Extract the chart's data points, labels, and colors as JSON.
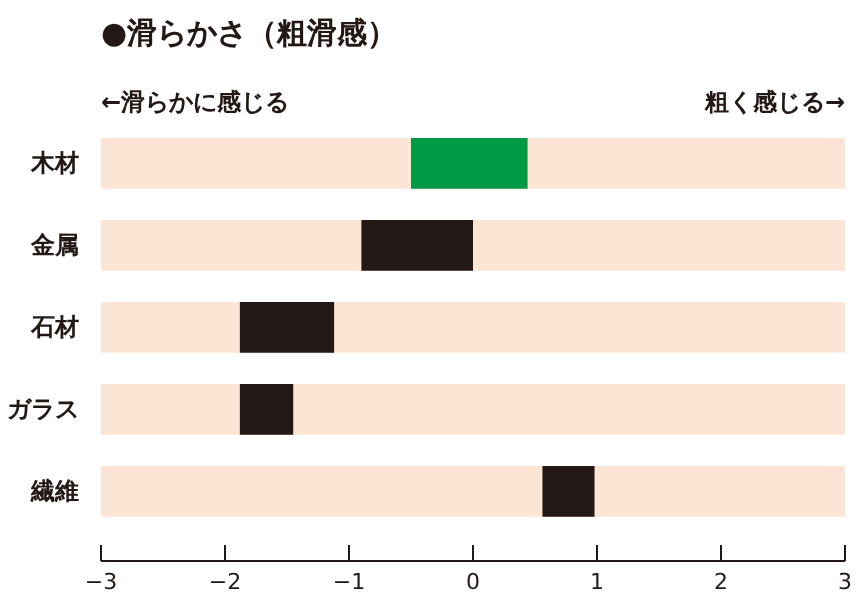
{
  "chart_data": {
    "type": "bar",
    "orientation": "horizontal",
    "title": "●滑らかさ（粗滑感）",
    "annotations": [
      "←滑らかに感じる",
      "粗く感じる→"
    ],
    "categories": [
      "木材",
      "金属",
      "石材",
      "ガラス",
      "繊維"
    ],
    "series": [
      {
        "color": "#fce5d4",
        "base": [
          -3,
          -3,
          -3,
          -3,
          -3
        ],
        "values": [
          6,
          6,
          6,
          6,
          6
        ]
      },
      {
        "colors": [
          "#009944",
          "#231815",
          "#231815",
          "#231815",
          "#231815"
        ],
        "base": [
          -0.5,
          -0.9,
          -1.88,
          -1.88,
          0.56
        ],
        "values": [
          0.94,
          0.9,
          0.76,
          0.43,
          0.42
        ]
      }
    ],
    "xlim": [
      -3,
      3
    ],
    "xticks": [
      -3,
      -2,
      -1,
      0,
      1,
      2,
      3
    ],
    "grid": false
  }
}
